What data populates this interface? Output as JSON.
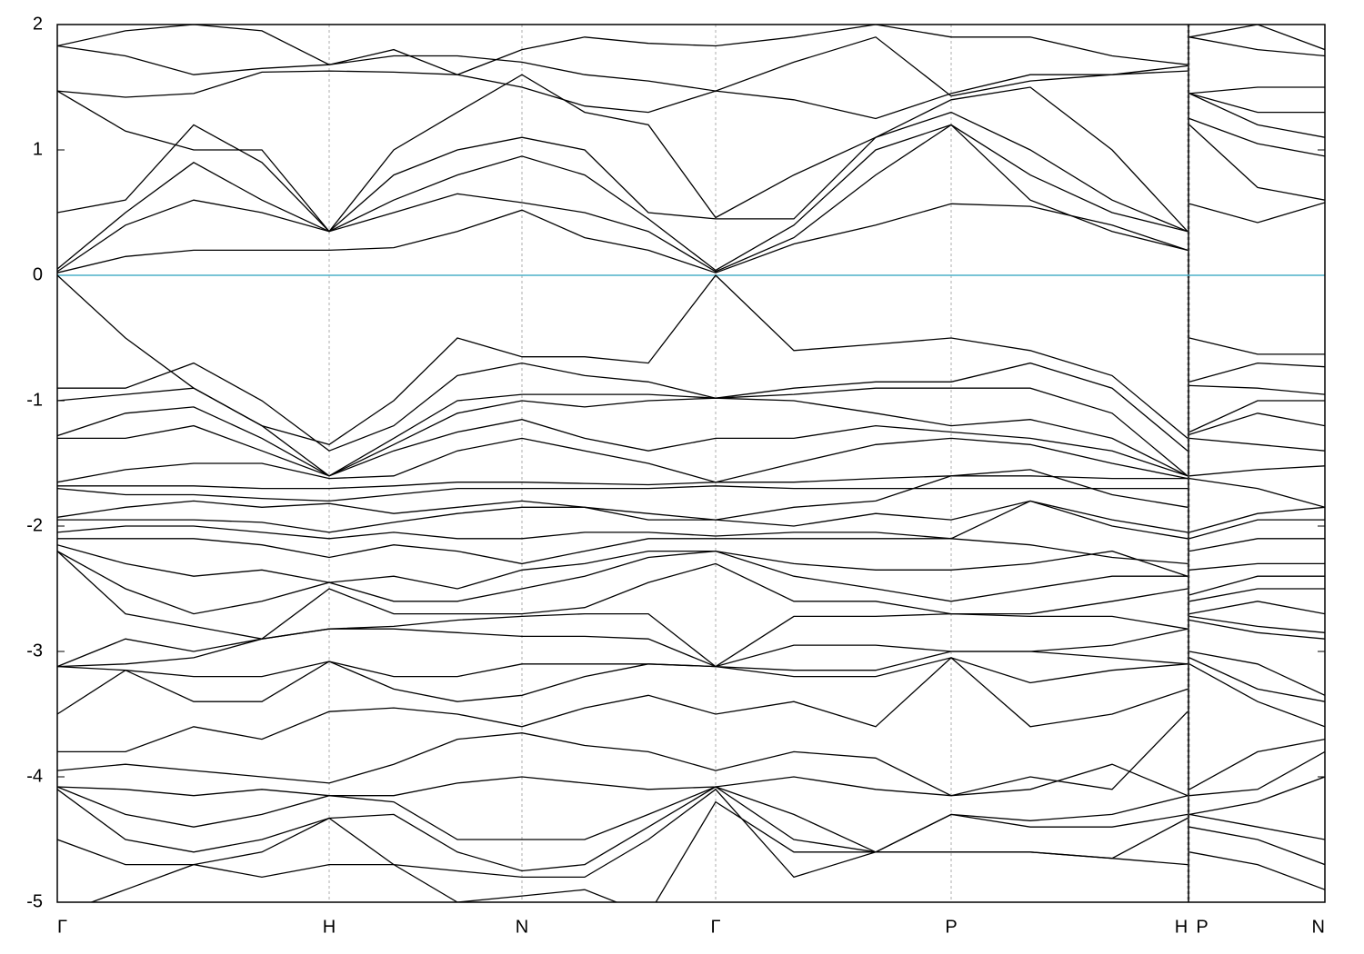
{
  "chart_data": {
    "type": "line",
    "x": [
      0,
      75,
      150,
      225,
      299,
      370,
      440,
      511,
      580,
      650,
      724,
      810,
      900,
      983,
      1070,
      1160,
      1243,
      1244,
      1245,
      1320,
      1394
    ],
    "xlim": [
      0,
      1394
    ],
    "xticks": [
      {
        "value": 0,
        "label": "Γ"
      },
      {
        "value": 299,
        "label": "H"
      },
      {
        "value": 511,
        "label": "N"
      },
      {
        "value": 724,
        "label": "Γ"
      },
      {
        "value": 983,
        "label": "P"
      },
      {
        "value": 1243,
        "label": "H"
      },
      {
        "value": 1245,
        "label": "P"
      },
      {
        "value": 1394,
        "label": "N"
      }
    ],
    "path_break": 1244,
    "ylim": [
      -5,
      2
    ],
    "yticks": [
      2,
      1,
      0,
      -1,
      -2,
      -3,
      -4,
      -5
    ],
    "grid": true,
    "fermi_level": 0,
    "fermi_color": "#4cb0c8",
    "series": [
      {
        "color": "#000000",
        "values": [
          0.02,
          0.15,
          0.2,
          0.2,
          0.2,
          0.22,
          0.35,
          0.52,
          0.3,
          0.2,
          0.02,
          0.25,
          0.4,
          0.57,
          0.55,
          0.4,
          0.2,
          null,
          0.57,
          0.42,
          0.58
        ]
      },
      {
        "color": "#000000",
        "values": [
          0.03,
          0.4,
          0.6,
          0.5,
          0.35,
          0.5,
          0.65,
          0.58,
          0.5,
          0.35,
          0.03,
          0.3,
          0.8,
          1.2,
          0.6,
          0.35,
          0.2,
          null,
          1.2,
          0.7,
          0.6
        ]
      },
      {
        "color": "#000000",
        "values": [
          0.05,
          0.5,
          0.9,
          0.6,
          0.35,
          0.6,
          0.8,
          0.95,
          0.8,
          0.45,
          0.04,
          0.4,
          1.0,
          1.2,
          0.8,
          0.5,
          0.35,
          null,
          1.25,
          1.05,
          0.95
        ]
      },
      {
        "color": "#000000",
        "values": [
          0.5,
          0.6,
          1.2,
          0.9,
          0.35,
          0.8,
          1.0,
          1.1,
          1.0,
          0.5,
          0.45,
          0.45,
          1.1,
          1.3,
          1.0,
          0.6,
          0.35,
          null,
          1.45,
          1.2,
          1.1
        ]
      },
      {
        "color": "#000000",
        "values": [
          1.47,
          1.15,
          1.0,
          1.0,
          0.35,
          1.0,
          1.3,
          1.6,
          1.3,
          1.2,
          0.46,
          0.8,
          1.1,
          1.4,
          1.5,
          1.0,
          0.35,
          null,
          1.45,
          1.3,
          1.3
        ]
      },
      {
        "color": "#000000",
        "values": [
          1.47,
          1.42,
          1.45,
          1.62,
          1.63,
          1.62,
          1.6,
          1.5,
          1.35,
          1.3,
          1.47,
          1.4,
          1.25,
          1.45,
          1.6,
          1.6,
          1.63,
          null,
          1.45,
          1.5,
          1.5
        ]
      },
      {
        "color": "#000000",
        "values": [
          1.83,
          1.75,
          1.6,
          1.65,
          1.68,
          1.75,
          1.75,
          1.7,
          1.6,
          1.55,
          1.47,
          1.7,
          1.9,
          1.43,
          1.55,
          1.6,
          1.67,
          null,
          1.9,
          1.8,
          1.75
        ]
      },
      {
        "color": "#000000",
        "values": [
          1.83,
          1.95,
          2.0,
          1.95,
          1.68,
          1.8,
          1.6,
          1.8,
          1.9,
          1.85,
          1.83,
          1.9,
          2.0,
          1.9,
          1.9,
          1.75,
          1.68,
          null,
          1.9,
          2.0,
          1.8
        ]
      },
      {
        "color": "#000000",
        "values": [
          0,
          -0.5,
          -0.9,
          -1.2,
          -1.35,
          -1.0,
          -0.5,
          -0.65,
          -0.65,
          -0.7,
          0,
          -0.6,
          -0.55,
          -0.5,
          -0.6,
          -0.8,
          -1.3,
          null,
          -0.5,
          -0.63,
          -0.63
        ]
      },
      {
        "color": "#000000",
        "values": [
          -0.9,
          -0.9,
          -0.7,
          -1.0,
          -1.4,
          -1.2,
          -0.8,
          -0.7,
          -0.8,
          -0.85,
          -0.98,
          -0.9,
          -0.85,
          -0.85,
          -0.7,
          -0.9,
          -1.4,
          null,
          -0.85,
          -0.7,
          -0.73
        ]
      },
      {
        "color": "#000000",
        "values": [
          -1.0,
          -0.95,
          -0.9,
          -1.2,
          -1.6,
          -1.3,
          -1.0,
          -0.95,
          -0.95,
          -0.95,
          -0.98,
          -0.95,
          -0.9,
          -0.9,
          -0.9,
          -1.1,
          -1.6,
          null,
          -0.88,
          -0.9,
          -0.95
        ]
      },
      {
        "color": "#000000",
        "values": [
          -1.28,
          -1.1,
          -1.05,
          -1.3,
          -1.6,
          -1.35,
          -1.1,
          -1.0,
          -1.05,
          -1.0,
          -0.98,
          -1.0,
          -1.1,
          -1.2,
          -1.15,
          -1.3,
          -1.6,
          null,
          -1.25,
          -1.0,
          -1.0
        ]
      },
      {
        "color": "#000000",
        "values": [
          -1.3,
          -1.3,
          -1.2,
          -1.4,
          -1.6,
          -1.4,
          -1.25,
          -1.15,
          -1.3,
          -1.4,
          -1.3,
          -1.3,
          -1.2,
          -1.25,
          -1.3,
          -1.4,
          -1.6,
          null,
          -1.27,
          -1.1,
          -1.2
        ]
      },
      {
        "color": "#000000",
        "values": [
          -1.65,
          -1.55,
          -1.5,
          -1.5,
          -1.62,
          -1.6,
          -1.4,
          -1.3,
          -1.4,
          -1.5,
          -1.65,
          -1.5,
          -1.35,
          -1.3,
          -1.35,
          -1.5,
          -1.62,
          null,
          -1.3,
          -1.35,
          -1.4
        ]
      },
      {
        "color": "#000000",
        "values": [
          -1.68,
          -1.68,
          -1.68,
          -1.7,
          -1.7,
          -1.68,
          -1.65,
          -1.65,
          -1.66,
          -1.67,
          -1.65,
          -1.65,
          -1.62,
          -1.6,
          -1.6,
          -1.62,
          -1.62,
          null,
          -1.6,
          -1.55,
          -1.52
        ]
      },
      {
        "color": "#000000",
        "values": [
          -1.7,
          -1.75,
          -1.75,
          -1.78,
          -1.8,
          -1.75,
          -1.7,
          -1.7,
          -1.7,
          -1.7,
          -1.68,
          -1.7,
          -1.7,
          -1.7,
          -1.7,
          -1.7,
          -1.7,
          null,
          -1.62,
          -1.7,
          -1.85
        ]
      },
      {
        "color": "#000000",
        "values": [
          -1.93,
          -1.85,
          -1.8,
          -1.85,
          -1.82,
          -1.9,
          -1.85,
          -1.8,
          -1.85,
          -1.9,
          -1.95,
          -1.85,
          -1.8,
          -1.6,
          -1.55,
          -1.75,
          -1.85,
          null,
          -2.05,
          -1.9,
          -1.85
        ]
      },
      {
        "color": "#000000",
        "values": [
          -1.95,
          -1.95,
          -1.95,
          -1.97,
          -2.05,
          -1.97,
          -1.9,
          -1.85,
          -1.85,
          -1.95,
          -1.95,
          -2.0,
          -1.9,
          -1.95,
          -1.8,
          -1.95,
          -2.05,
          null,
          -2.1,
          -1.95,
          -1.95
        ]
      },
      {
        "color": "#000000",
        "values": [
          -2.05,
          -2.0,
          -2.0,
          -2.05,
          -2.1,
          -2.05,
          -2.1,
          -2.1,
          -2.05,
          -2.05,
          -2.08,
          -2.05,
          -2.05,
          -2.1,
          -1.8,
          -2.0,
          -2.1,
          null,
          -2.2,
          -2.1,
          -2.1
        ]
      },
      {
        "color": "#000000",
        "values": [
          -2.1,
          -2.1,
          -2.1,
          -2.15,
          -2.25,
          -2.15,
          -2.2,
          -2.3,
          -2.2,
          -2.1,
          -2.1,
          -2.1,
          -2.1,
          -2.1,
          -2.15,
          -2.25,
          -2.3,
          null,
          -2.35,
          -2.3,
          -2.3
        ]
      },
      {
        "color": "#000000",
        "values": [
          -2.15,
          -2.3,
          -2.4,
          -2.35,
          -2.45,
          -2.4,
          -2.5,
          -2.35,
          -2.3,
          -2.2,
          -2.2,
          -2.3,
          -2.35,
          -2.35,
          -2.3,
          -2.2,
          -2.4,
          null,
          -2.55,
          -2.4,
          -2.4
        ]
      },
      {
        "color": "#000000",
        "values": [
          -2.2,
          -2.5,
          -2.7,
          -2.6,
          -2.45,
          -2.6,
          -2.6,
          -2.5,
          -2.4,
          -2.25,
          -2.2,
          -2.4,
          -2.5,
          -2.6,
          -2.5,
          -2.4,
          -2.4,
          null,
          -2.6,
          -2.5,
          -2.5
        ]
      },
      {
        "color": "#000000",
        "values": [
          -2.2,
          -2.7,
          -2.8,
          -2.9,
          -2.5,
          -2.7,
          -2.7,
          -2.7,
          -2.65,
          -2.45,
          -2.3,
          -2.6,
          -2.6,
          -2.7,
          -2.7,
          -2.6,
          -2.5,
          null,
          -2.7,
          -2.6,
          -2.7
        ]
      },
      {
        "color": "#000000",
        "values": [
          -3.12,
          -2.9,
          -3.0,
          -2.9,
          -2.82,
          -2.8,
          -2.75,
          -2.72,
          -2.7,
          -2.7,
          -3.12,
          -2.72,
          -2.72,
          -2.7,
          -2.72,
          -2.72,
          -2.82,
          null,
          -2.72,
          -2.8,
          -2.85
        ]
      },
      {
        "color": "#000000",
        "values": [
          -3.12,
          -3.1,
          -3.05,
          -2.9,
          -2.82,
          -2.82,
          -2.85,
          -2.88,
          -2.88,
          -2.9,
          -3.12,
          -2.95,
          -2.95,
          -3.0,
          -3.0,
          -2.95,
          -2.82,
          null,
          -2.75,
          -2.85,
          -2.9
        ]
      },
      {
        "color": "#000000",
        "values": [
          -3.12,
          -3.15,
          -3.2,
          -3.2,
          -3.08,
          -3.2,
          -3.2,
          -3.1,
          -3.1,
          -3.1,
          -3.12,
          -3.15,
          -3.15,
          -3.0,
          -3.0,
          -3.05,
          -3.1,
          null,
          -3.0,
          -3.1,
          -3.35
        ]
      },
      {
        "color": "#000000",
        "values": [
          -3.5,
          -3.15,
          -3.4,
          -3.4,
          -3.08,
          -3.3,
          -3.4,
          -3.35,
          -3.2,
          -3.1,
          -3.12,
          -3.2,
          -3.2,
          -3.05,
          -3.25,
          -3.15,
          -3.1,
          null,
          -3.05,
          -3.3,
          -3.4
        ]
      },
      {
        "color": "#000000",
        "values": [
          -3.8,
          -3.8,
          -3.6,
          -3.7,
          -3.48,
          -3.45,
          -3.5,
          -3.6,
          -3.45,
          -3.35,
          -3.5,
          -3.4,
          -3.6,
          -3.05,
          -3.6,
          -3.5,
          -3.3,
          null,
          -3.1,
          -3.4,
          -3.6
        ]
      },
      {
        "color": "#000000",
        "values": [
          -3.95,
          -3.9,
          -3.95,
          -4.0,
          -4.05,
          -3.9,
          -3.7,
          -3.65,
          -3.75,
          -3.8,
          -3.95,
          -3.8,
          -3.85,
          -4.15,
          -4.0,
          -4.1,
          -3.48,
          null,
          -4.1,
          -3.8,
          -3.7
        ]
      },
      {
        "color": "#000000",
        "values": [
          -4.08,
          -4.1,
          -4.15,
          -4.1,
          -4.15,
          -4.15,
          -4.05,
          -4.0,
          -4.05,
          -4.1,
          -4.08,
          -4.0,
          -4.1,
          -4.15,
          -4.1,
          -3.9,
          -4.15,
          null,
          -4.15,
          -4.1,
          -3.8
        ]
      },
      {
        "color": "#000000",
        "values": [
          -4.08,
          -4.3,
          -4.4,
          -4.3,
          -4.15,
          -4.2,
          -4.5,
          -4.5,
          -4.5,
          -4.3,
          -4.08,
          -4.3,
          -4.6,
          -4.3,
          -4.35,
          -4.3,
          -4.15,
          null,
          -4.3,
          -4.2,
          -4.0
        ]
      },
      {
        "color": "#000000",
        "values": [
          -4.1,
          -4.5,
          -4.6,
          -4.5,
          -4.33,
          -4.3,
          -4.6,
          -4.75,
          -4.7,
          -4.4,
          -4.08,
          -4.5,
          -4.6,
          -4.3,
          -4.4,
          -4.4,
          -4.3,
          null,
          -4.3,
          -4.4,
          -4.5
        ]
      },
      {
        "color": "#000000",
        "values": [
          -4.5,
          -4.7,
          -4.7,
          -4.6,
          -4.33,
          -4.7,
          -4.75,
          -4.8,
          -4.8,
          -4.5,
          -4.1,
          -4.8,
          -4.6,
          -4.6,
          -4.6,
          -4.65,
          -4.33,
          null,
          -4.4,
          -4.5,
          -4.7
        ]
      },
      {
        "color": "#000000",
        "values": [
          -5.1,
          -4.9,
          -4.7,
          -4.8,
          -4.7,
          -4.7,
          -5.0,
          -4.95,
          -4.9,
          -5.1,
          -4.2,
          -4.6,
          -4.6,
          -4.6,
          -4.6,
          -4.65,
          -4.7,
          null,
          -4.6,
          -4.7,
          -4.9
        ]
      }
    ]
  }
}
